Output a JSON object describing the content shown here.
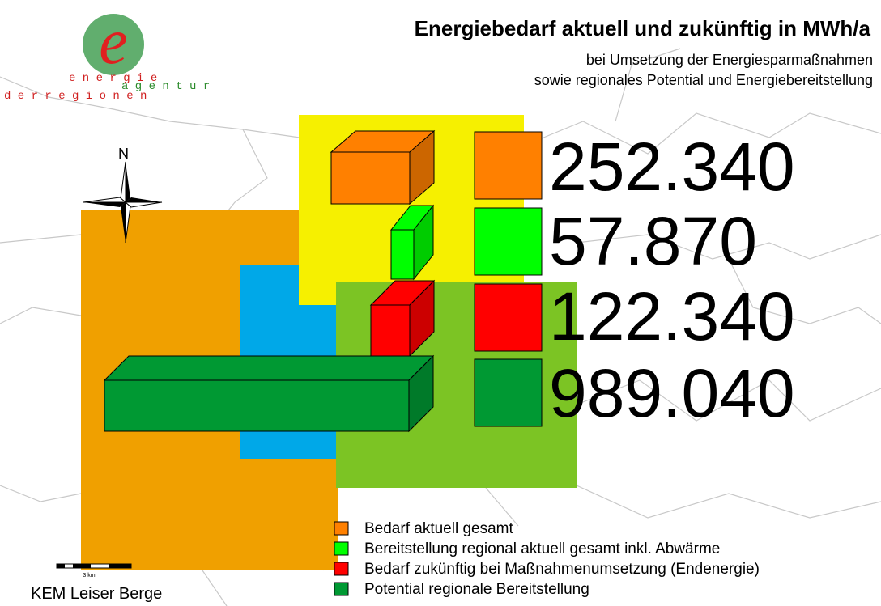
{
  "logo": {
    "line1": "e n e r g i e",
    "line2": "a g e n t u r",
    "line3": "d e r  r e g i o n e n"
  },
  "header": {
    "title": "Energiebedarf aktuell und zukünftig in MWh/a",
    "subtitle1": "bei Umsetzung der Energiesparmaßnahmen",
    "subtitle2": "sowie regionales Potential und Energiebereitstellung"
  },
  "map": {
    "north": "N",
    "scale": "3 km",
    "region": "KEM Leiser Berge"
  },
  "items": [
    {
      "label": "Bedarf aktuell gesamt",
      "value": "252.340",
      "color": "#ff8000"
    },
    {
      "label": "Bereitstellung regional aktuell gesamt inkl. Abwärme",
      "value": "57.870",
      "color": "#00ff00"
    },
    {
      "label": "Bedarf zukünftig bei Maßnahmenumsetzung (Endenergie)",
      "value": "122.340",
      "color": "#ff0000"
    },
    {
      "label": "Potential regionale Bereitstellung",
      "value": "989.040",
      "color": "#009933"
    }
  ]
}
